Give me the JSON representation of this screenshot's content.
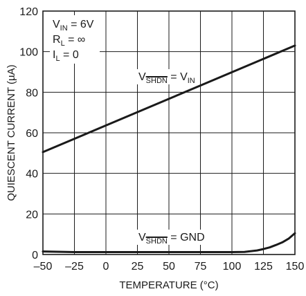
{
  "chart_data": {
    "type": "line",
    "xlabel": "TEMPERATURE (°C)",
    "ylabel": "QUIESCENT CURRENT (µA)",
    "xlim": [
      -50,
      150
    ],
    "ylim": [
      0,
      120
    ],
    "xticks": [
      -50,
      -25,
      0,
      25,
      50,
      75,
      100,
      125,
      150
    ],
    "yticks": [
      0,
      20,
      40,
      60,
      80,
      100,
      120
    ],
    "xtick_labels": [
      "–50",
      "–25",
      "0",
      "25",
      "50",
      "75",
      "100",
      "125",
      "150"
    ],
    "ytick_labels": [
      "0",
      "20",
      "40",
      "60",
      "80",
      "100",
      "120"
    ],
    "grid": true,
    "conditions": [
      {
        "main": "V",
        "sub": "IN",
        "rest": " = 6V"
      },
      {
        "main": "R",
        "sub": "L",
        "rest": " = ∞"
      },
      {
        "main": "I",
        "sub": "L",
        "rest": " = 0"
      }
    ],
    "series": [
      {
        "label": {
          "v": "V",
          "sub": "SHDN",
          "eq": " = V",
          "sub2": "IN"
        },
        "x": [
          -50,
          150
        ],
        "y": [
          50.5,
          103
        ]
      },
      {
        "label": {
          "v": "V",
          "sub": "SHDN",
          "eq": " = GND",
          "sub2": ""
        },
        "x": [
          -50,
          -25,
          0,
          25,
          50,
          75,
          100,
          110,
          120,
          125,
          130,
          135,
          140,
          145,
          150
        ],
        "y": [
          1.5,
          1.2,
          1.2,
          1.2,
          1.2,
          1.2,
          1.2,
          1.3,
          2.0,
          2.7,
          3.5,
          4.7,
          6.0,
          7.8,
          10.5
        ]
      }
    ]
  }
}
